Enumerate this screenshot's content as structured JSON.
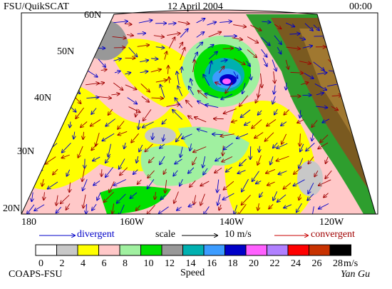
{
  "header": {
    "title": "FSU/QuikSCAT",
    "date": "12 April 2004",
    "time": "00:00"
  },
  "map": {
    "lat_labels": [
      "60N",
      "50N",
      "40N",
      "30N",
      "20N"
    ],
    "lon_labels": [
      "180",
      "160W",
      "140W",
      "120W"
    ]
  },
  "legend": {
    "divergent": "divergent",
    "scale": "scale",
    "scale_value": "10 m/s",
    "convergent": "convergent"
  },
  "colorbar": {
    "labels": [
      "0",
      "2",
      "4",
      "6",
      "8",
      "10",
      "12",
      "14",
      "16",
      "18",
      "20",
      "22",
      "24",
      "26",
      "28"
    ],
    "colors": [
      "#ffffff",
      "#c8c8c8",
      "#ffff00",
      "#ffc8c8",
      "#a0f0a0",
      "#00e000",
      "#989898",
      "#00b0b0",
      "#3c9cff",
      "#0000c8",
      "#ff60ff",
      "#b080ff",
      "#ff0000",
      "#c83200",
      "#000000"
    ],
    "unit": "m/s",
    "caption": "Speed"
  },
  "footer": {
    "org": "COAPS-FSU",
    "author": "Yan Gu"
  }
}
